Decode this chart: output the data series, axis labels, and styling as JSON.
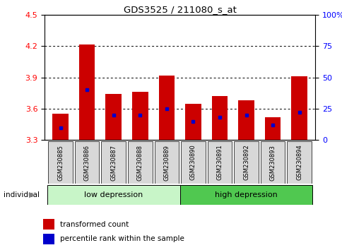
{
  "title": "GDS3525 / 211080_s_at",
  "samples": [
    "GSM230885",
    "GSM230886",
    "GSM230887",
    "GSM230888",
    "GSM230889",
    "GSM230890",
    "GSM230891",
    "GSM230892",
    "GSM230893",
    "GSM230894"
  ],
  "transformed_count": [
    3.55,
    4.22,
    3.74,
    3.76,
    3.92,
    3.65,
    3.72,
    3.68,
    3.52,
    3.91
  ],
  "percentile_rank": [
    10,
    40,
    20,
    20,
    25,
    15,
    18,
    20,
    12,
    22
  ],
  "ylim": [
    3.3,
    4.5
  ],
  "yticks": [
    3.3,
    3.6,
    3.9,
    4.2,
    4.5
  ],
  "right_yticks": [
    0,
    25,
    50,
    75,
    100
  ],
  "right_yticklabels": [
    "0",
    "25",
    "50",
    "75",
    "100%"
  ],
  "groups": [
    {
      "label": "low depression",
      "start": 0,
      "end": 5,
      "color": "#c8f5c8"
    },
    {
      "label": "high depression",
      "start": 5,
      "end": 10,
      "color": "#50c850"
    }
  ],
  "bar_color": "#cc0000",
  "blue_marker_color": "#0000cc",
  "bar_width": 0.6,
  "tick_bg_color": "#d8d8d8",
  "legend_items": [
    "transformed count",
    "percentile rank within the sample"
  ],
  "individual_label": "individual",
  "bar_base": 3.3
}
